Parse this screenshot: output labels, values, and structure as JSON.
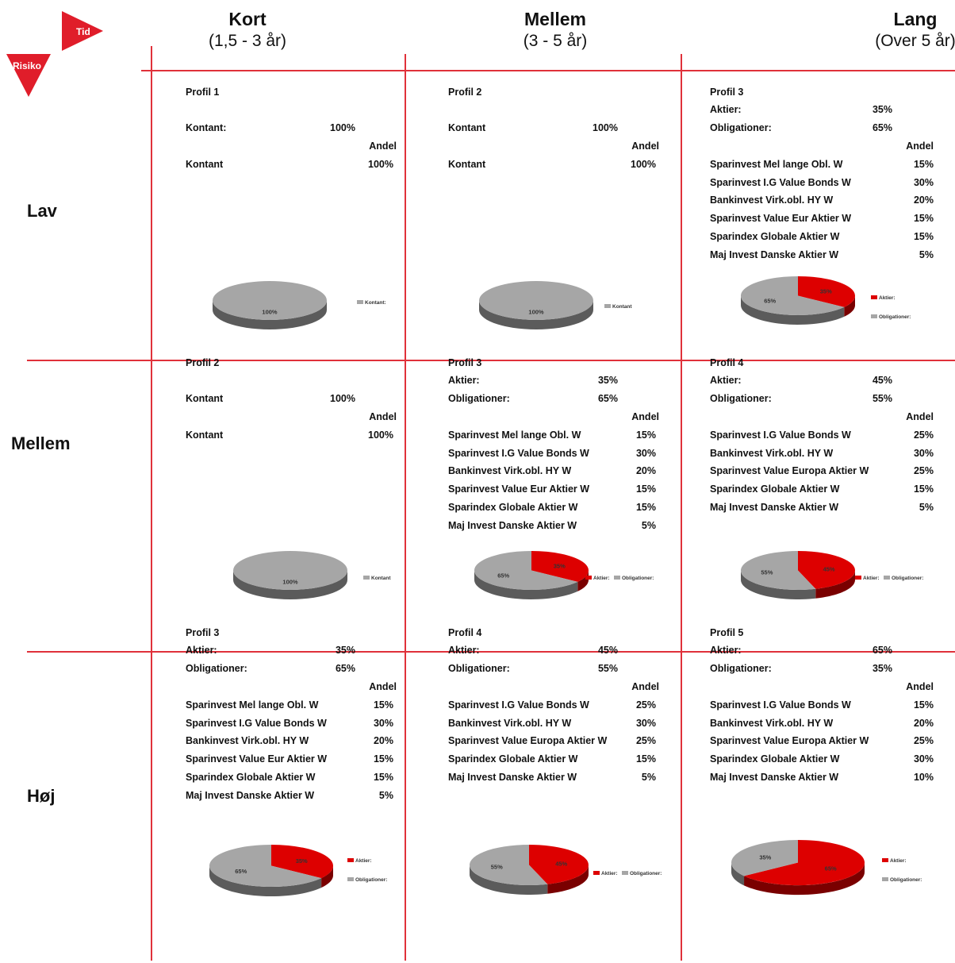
{
  "corner": {
    "tid": "Tid",
    "risiko": "Risiko"
  },
  "columns": [
    {
      "title": "Kort",
      "subtitle": "(1,5 - 3 år)"
    },
    {
      "title": "Mellem",
      "subtitle": "(3 - 5 år)"
    },
    {
      "title": "Lang",
      "subtitle": "(Over 5 år)"
    }
  ],
  "rows": [
    {
      "label": "Lav"
    },
    {
      "label": "Mellem"
    },
    {
      "label": "Høj"
    }
  ],
  "cells": [
    {
      "profile": "Profil 1",
      "alloc": [
        {
          "label": "Kontant:",
          "value": "100%"
        }
      ],
      "andel_header": "Andel",
      "funds": [
        {
          "name": "Kontant",
          "value": "100%"
        }
      ]
    },
    {
      "profile": "Profil 2",
      "alloc": [
        {
          "label": "Kontant",
          "value": "100%"
        }
      ],
      "andel_header": "Andel",
      "funds": [
        {
          "name": "Kontant",
          "value": "100%"
        }
      ]
    },
    {
      "profile": "Profil 3",
      "alloc": [
        {
          "label": "Aktier:",
          "value": "35%"
        },
        {
          "label": "Obligationer:",
          "value": "65%"
        }
      ],
      "andel_header": "Andel",
      "funds": [
        {
          "name": "Sparinvest Mel lange Obl. W",
          "value": "15%"
        },
        {
          "name": "Sparinvest I.G Value Bonds W",
          "value": "30%"
        },
        {
          "name": "Bankinvest Virk.obl. HY W",
          "value": "20%"
        },
        {
          "name": "Sparinvest Value Eur Aktier W",
          "value": "15%"
        },
        {
          "name": "Sparindex Globale Aktier W",
          "value": "15%"
        },
        {
          "name": "Maj Invest Danske Aktier W",
          "value": "5%"
        }
      ]
    },
    {
      "profile": "Profil 2",
      "alloc": [
        {
          "label": "Kontant",
          "value": "100%"
        }
      ],
      "andel_header": "Andel",
      "funds": [
        {
          "name": "Kontant",
          "value": "100%"
        }
      ]
    },
    {
      "profile": "Profil 3",
      "alloc": [
        {
          "label": "Aktier:",
          "value": "35%"
        },
        {
          "label": "Obligationer:",
          "value": "65%"
        }
      ],
      "andel_header": "Andel",
      "funds": [
        {
          "name": "Sparinvest Mel lange Obl. W",
          "value": "15%"
        },
        {
          "name": "Sparinvest I.G Value Bonds W",
          "value": "30%"
        },
        {
          "name": "Bankinvest Virk.obl. HY W",
          "value": "20%"
        },
        {
          "name": "Sparinvest Value Eur Aktier W",
          "value": "15%"
        },
        {
          "name": "Sparindex Globale Aktier W",
          "value": "15%"
        },
        {
          "name": "Maj Invest Danske Aktier W",
          "value": "5%"
        }
      ]
    },
    {
      "profile": "Profil 4",
      "alloc": [
        {
          "label": "Aktier:",
          "value": "45%"
        },
        {
          "label": "Obligationer:",
          "value": "55%"
        }
      ],
      "andel_header": "Andel",
      "funds": [
        {
          "name": "Sparinvest I.G Value Bonds W",
          "value": "25%"
        },
        {
          "name": "Bankinvest Virk.obl. HY W",
          "value": "30%"
        },
        {
          "name": "Sparinvest Value Europa Aktier W",
          "value": "25%"
        },
        {
          "name": "Sparindex Globale Aktier W",
          "value": "15%"
        },
        {
          "name": "Maj Invest Danske Aktier W",
          "value": "5%"
        }
      ]
    },
    {
      "profile": "Profil 3",
      "alloc": [
        {
          "label": "Aktier:",
          "value": "35%"
        },
        {
          "label": "Obligationer:",
          "value": "65%"
        }
      ],
      "andel_header": "Andel",
      "funds": [
        {
          "name": "Sparinvest Mel lange Obl. W",
          "value": "15%"
        },
        {
          "name": "Sparinvest I.G Value Bonds W",
          "value": "30%"
        },
        {
          "name": "Bankinvest Virk.obl. HY W",
          "value": "20%"
        },
        {
          "name": "Sparinvest Value Eur Aktier W",
          "value": "15%"
        },
        {
          "name": "Sparindex Globale Aktier W",
          "value": "15%"
        },
        {
          "name": "Maj Invest Danske Aktier W",
          "value": "5%"
        }
      ]
    },
    {
      "profile": "Profil 4",
      "alloc": [
        {
          "label": "Aktier:",
          "value": "45%"
        },
        {
          "label": "Obligationer:",
          "value": "55%"
        }
      ],
      "andel_header": "Andel",
      "funds": [
        {
          "name": "Sparinvest I.G Value Bonds W",
          "value": "25%"
        },
        {
          "name": "Bankinvest Virk.obl. HY W",
          "value": "30%"
        },
        {
          "name": "Sparinvest Value Europa Aktier W",
          "value": "25%"
        },
        {
          "name": "Sparindex Globale Aktier W",
          "value": "15%"
        },
        {
          "name": "Maj Invest Danske Aktier W",
          "value": "5%"
        }
      ]
    },
    {
      "profile": "Profil 5",
      "alloc": [
        {
          "label": "Aktier:",
          "value": "65%"
        },
        {
          "label": "Obligationer:",
          "value": "35%"
        }
      ],
      "andel_header": "Andel",
      "funds": [
        {
          "name": "Sparinvest I.G Value Bonds W",
          "value": "15%"
        },
        {
          "name": "Bankinvest Virk.obl. HY W",
          "value": "20%"
        },
        {
          "name": "Sparinvest Value Europa Aktier W",
          "value": "25%"
        },
        {
          "name": "Sparindex Globale Aktier W",
          "value": "30%"
        },
        {
          "name": "Maj Invest Danske Aktier W",
          "value": "10%"
        }
      ]
    }
  ],
  "colors": {
    "grid_line": "#e0313a",
    "aktier": "#dd0000",
    "obligationer": "#a6a6a6",
    "kontant": "#a6a6a6"
  },
  "chart_data": [
    {
      "type": "pie",
      "slices": [
        {
          "label": "Kontant:",
          "value": 100,
          "display": "100%"
        }
      ]
    },
    {
      "type": "pie",
      "slices": [
        {
          "label": "Kontant",
          "value": 100,
          "display": "100%"
        }
      ]
    },
    {
      "type": "pie",
      "slices": [
        {
          "label": "Aktier:",
          "value": 35,
          "display": "35%"
        },
        {
          "label": "Obligationer:",
          "value": 65,
          "display": "65%"
        }
      ]
    },
    {
      "type": "pie",
      "slices": [
        {
          "label": "Kontant",
          "value": 100,
          "display": "100%"
        }
      ]
    },
    {
      "type": "pie",
      "slices": [
        {
          "label": "Aktier:",
          "value": 35,
          "display": "35%"
        },
        {
          "label": "Obligationer:",
          "value": 65,
          "display": "65%"
        }
      ]
    },
    {
      "type": "pie",
      "slices": [
        {
          "label": "Aktier:",
          "value": 45,
          "display": "45%"
        },
        {
          "label": "Obligationer:",
          "value": 55,
          "display": "55%"
        }
      ]
    },
    {
      "type": "pie",
      "slices": [
        {
          "label": "Aktier:",
          "value": 35,
          "display": "35%"
        },
        {
          "label": "Obligationer:",
          "value": 65,
          "display": "65%"
        }
      ]
    },
    {
      "type": "pie",
      "slices": [
        {
          "label": "Aktier:",
          "value": 45,
          "display": "45%"
        },
        {
          "label": "Obligationer:",
          "value": 55,
          "display": "55%"
        }
      ]
    },
    {
      "type": "pie",
      "slices": [
        {
          "label": "Aktier:",
          "value": 65,
          "display": "65%"
        },
        {
          "label": "Obligationer:",
          "value": 35,
          "display": "35%"
        }
      ]
    }
  ]
}
